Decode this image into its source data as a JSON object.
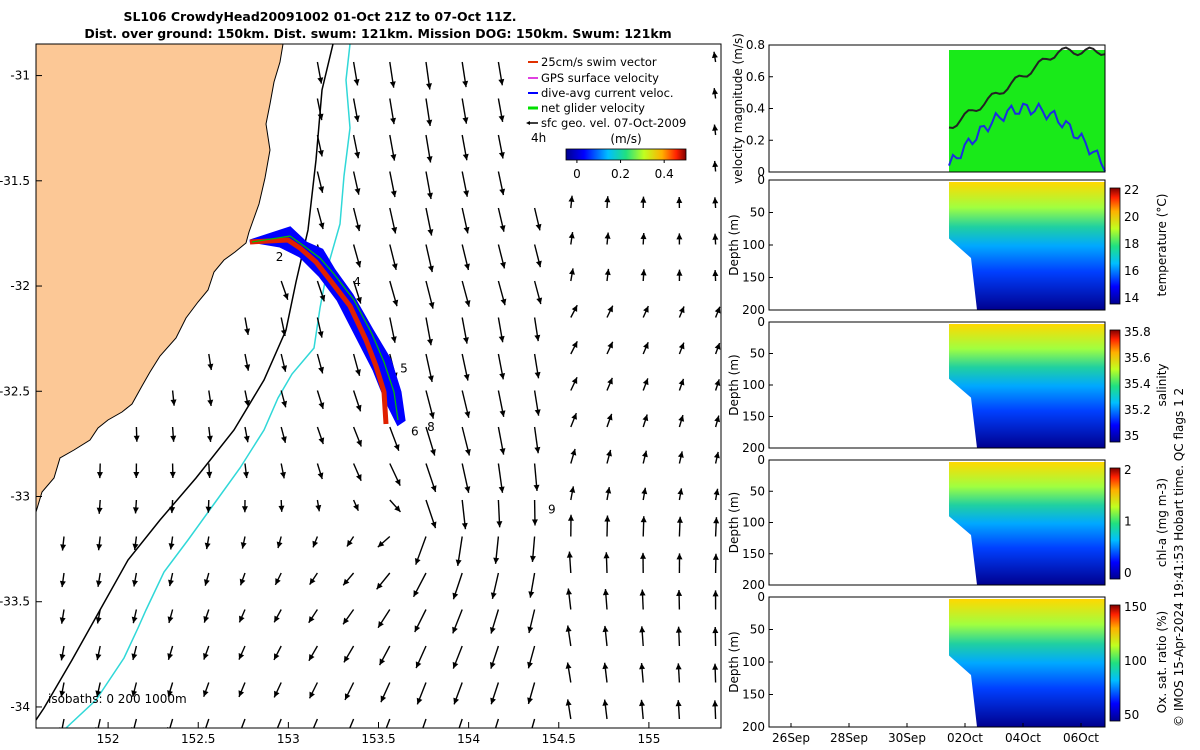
{
  "chart_data": [
    {
      "type": "map",
      "title": "SL106 CrowdyHead20091002 01-Oct 21Z to 07-Oct 11Z.",
      "subtitle": "Dist. over ground: 150km. Dist. swum: 121km. Mission DOG: 150km. Swum: 121km",
      "xlim": [
        151.6,
        155.4
      ],
      "ylim": [
        -34.1,
        -30.85
      ],
      "xticks": [
        "152",
        "152.5",
        "153",
        "153.5",
        "154",
        "154.5",
        "155"
      ],
      "yticks": [
        "-31",
        "-31.5",
        "-32",
        "-32.5",
        "-33",
        "-33.5",
        "-34"
      ],
      "legend": [
        {
          "label": "25cm/s swim vector",
          "color": "#e03000"
        },
        {
          "label": "GPS surface velocity",
          "color": "#e040e0"
        },
        {
          "label": "dive-avg current veloc.",
          "color": "#0000ff"
        },
        {
          "label": "net glider velocity",
          "color": "#00e000"
        },
        {
          "label": "sfc geo. vel. 07-Oct-2009",
          "color": "#000000"
        }
      ],
      "legend_position": "top-right",
      "scale_label": "4h",
      "colorbar": {
        "label": "(m/s)",
        "ticks": [
          "0",
          "0.2",
          "0.4"
        ],
        "range": [
          -0.05,
          0.5
        ]
      },
      "isobaths_label": "isobaths: 0   200  1000m",
      "track_labels": [
        {
          "text": "2",
          "lon": 152.93,
          "lat": -31.88
        },
        {
          "text": "4",
          "lon": 153.36,
          "lat": -32.0
        },
        {
          "text": "5",
          "lon": 153.62,
          "lat": -32.41
        },
        {
          "text": "6",
          "lon": 153.68,
          "lat": -32.71
        },
        {
          "text": "8",
          "lon": 153.77,
          "lat": -32.69
        },
        {
          "text": "9",
          "lon": 154.44,
          "lat": -33.08
        }
      ]
    },
    {
      "type": "line",
      "ylabel": "velocity magnitude (m/s)",
      "ylim": [
        0,
        0.8
      ],
      "yticks": [
        "0",
        "0.2",
        "0.4",
        "0.6",
        "0.8"
      ]
    },
    {
      "type": "heatmap",
      "ylabel": "Depth (m)",
      "cblabel": "temperature (°C)",
      "yticks": [
        "0",
        "50",
        "100",
        "150",
        "200"
      ],
      "cbticks": [
        "14",
        "16",
        "18",
        "20",
        "22"
      ]
    },
    {
      "type": "heatmap",
      "ylabel": "Depth (m)",
      "cblabel": "salinity",
      "yticks": [
        "0",
        "50",
        "100",
        "150",
        "200"
      ],
      "cbticks": [
        "35",
        "35.2",
        "35.4",
        "35.6",
        "35.8"
      ]
    },
    {
      "type": "heatmap",
      "ylabel": "Depth (m)",
      "cblabel": "chl-a (mg m-3)",
      "yticks": [
        "0",
        "50",
        "100",
        "150",
        "200"
      ],
      "cbticks": [
        "0",
        "1",
        "2"
      ]
    },
    {
      "type": "heatmap",
      "ylabel": "Depth (m)",
      "cblabel": "Ox. sat. ratio (%)",
      "yticks": [
        "0",
        "50",
        "100",
        "150",
        "200"
      ],
      "cbticks": [
        "50",
        "100",
        "150"
      ],
      "xticks": [
        "26Sep",
        "28Sep",
        "30Sep",
        "02Oct",
        "04Oct",
        "06Oct"
      ]
    }
  ],
  "footer": "© IMOS 15-Apr-2024 19:41:53 Hobart time. QC flags 1  2"
}
